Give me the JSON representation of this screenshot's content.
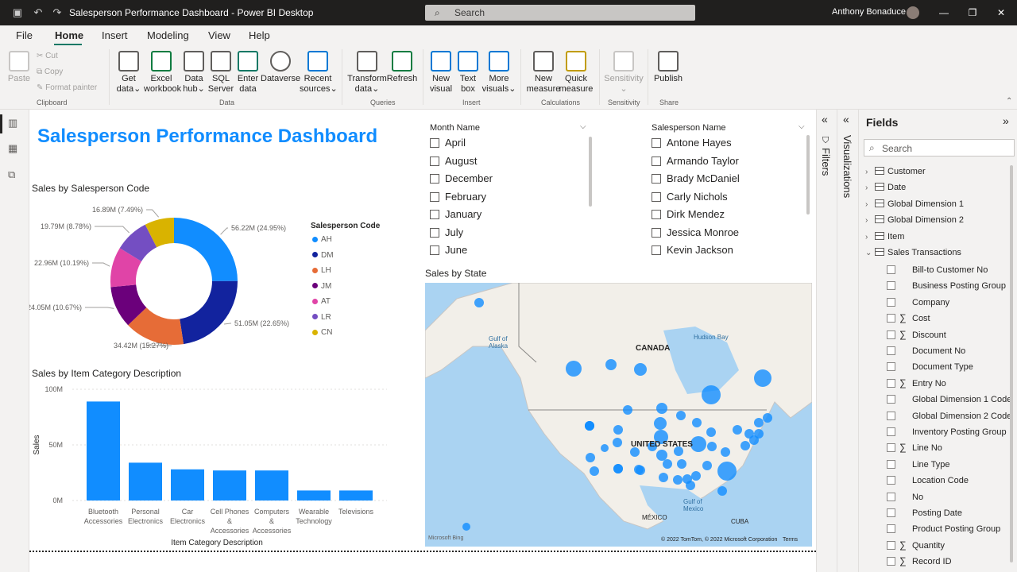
{
  "window": {
    "title": "Salesperson Performance Dashboard - Power BI Desktop",
    "search_placeholder": "Search",
    "user": "Anthony Bonaduce"
  },
  "menu": {
    "tabs": [
      "File",
      "Home",
      "Insert",
      "Modeling",
      "View",
      "Help"
    ],
    "active": "Home"
  },
  "ribbon": {
    "clipboard": {
      "paste": "Paste",
      "cut": "Cut",
      "copy": "Copy",
      "format_painter": "Format painter",
      "group": "Clipboard"
    },
    "data": {
      "get_data": [
        "Get",
        "data"
      ],
      "excel": [
        "Excel",
        "workbook"
      ],
      "data_hub": [
        "Data",
        "hub"
      ],
      "sql": [
        "SQL",
        "Server"
      ],
      "enter": [
        "Enter",
        "data"
      ],
      "dataverse": "Dataverse",
      "recent": [
        "Recent",
        "sources"
      ],
      "group": "Data"
    },
    "queries": {
      "transform": [
        "Transform",
        "data"
      ],
      "refresh": "Refresh",
      "group": "Queries"
    },
    "insert": {
      "new_visual": [
        "New",
        "visual"
      ],
      "text_box": [
        "Text",
        "box"
      ],
      "more": [
        "More",
        "visuals"
      ],
      "group": "Insert"
    },
    "calculations": {
      "new_measure": [
        "New",
        "measure"
      ],
      "quick_measure": [
        "Quick",
        "measure"
      ],
      "group": "Calculations"
    },
    "sensitivity": {
      "label": "Sensitivity",
      "group": "Sensitivity"
    },
    "share": {
      "publish": "Publish",
      "group": "Share"
    }
  },
  "dashboard": {
    "title": "Salesperson Performance Dashboard",
    "donut": {
      "title": "Sales by Salesperson Code",
      "legend_title": "Salesperson Code"
    },
    "bar": {
      "title": "Sales by Item Category Description"
    },
    "month_slicer": {
      "header": "Month Name",
      "items": [
        "April",
        "August",
        "December",
        "February",
        "January",
        "July",
        "June"
      ]
    },
    "person_slicer": {
      "header": "Salesperson Name",
      "items": [
        "Antone Hayes",
        "Armando Taylor",
        "Brady McDaniel",
        "Carly Nichols",
        "Dirk Mendez",
        "Jessica Monroe",
        "Kevin Jackson"
      ]
    },
    "map": {
      "title": "Sales by State",
      "labels": {
        "canada": "CANADA",
        "us": "UNITED STATES",
        "mexico": "MÉXICO",
        "cuba": "CUBA",
        "hudson": "Hudson Bay",
        "alaska": "Gulf of Alaska",
        "gulf": "Gulf of Mexico",
        "attribution": "© 2022 TomTom, © 2022 Microsoft Corporation",
        "terms": "Terms",
        "bing": "Microsoft Bing"
      }
    }
  },
  "chart_data": [
    {
      "type": "pie",
      "title": "Sales by Salesperson Code",
      "legend_title": "Salesperson Code",
      "slices": [
        {
          "name": "AH",
          "value": 56.22,
          "label": "56.22M (24.95%)",
          "color": "#118dff"
        },
        {
          "name": "DM",
          "value": 51.05,
          "label": "51.05M (22.65%)",
          "color": "#12239e"
        },
        {
          "name": "LH",
          "value": 34.42,
          "label": "34.42M (15.27%)",
          "color": "#e66c37"
        },
        {
          "name": "JM",
          "value": 24.05,
          "label": "24.05M (10.67%)",
          "color": "#6b007b"
        },
        {
          "name": "AT",
          "value": 22.96,
          "label": "22.96M (10.19%)",
          "color": "#e044a7"
        },
        {
          "name": "LR",
          "value": 19.79,
          "label": "19.79M (8.78%)",
          "color": "#744ec2"
        },
        {
          "name": "CN",
          "value": 16.89,
          "label": "16.89M (7.49%)",
          "color": "#d9b300"
        }
      ]
    },
    {
      "type": "bar",
      "title": "Sales by Item Category Description",
      "xlabel": "Item Category Description",
      "ylabel": "Sales",
      "categories": [
        [
          "Bluetooth",
          "Accessories"
        ],
        [
          "Personal",
          "Electronics"
        ],
        [
          "Car",
          "Electronics"
        ],
        [
          "Cell Phones",
          "&",
          "Accessories"
        ],
        [
          "Computers",
          "&",
          "Accessories"
        ],
        [
          "Wearable",
          "Technology"
        ],
        [
          "Televisions"
        ]
      ],
      "values": [
        89,
        34,
        28,
        27,
        27,
        9,
        9
      ],
      "ylim": [
        0,
        100
      ],
      "yticks": [
        "0M",
        "50M",
        "100M"
      ],
      "ytick_values": [
        0,
        50,
        100
      ],
      "color": "#118dff"
    }
  ],
  "panes": {
    "filters": "Filters",
    "visualizations": "Visualizations",
    "fields": {
      "title": "Fields",
      "search": "Search",
      "tables": [
        "Customer",
        "Date",
        "Global Dimension 1",
        "Global Dimension 2",
        "Item",
        "Sales Transactions"
      ],
      "columns": [
        {
          "name": "Bill-to Customer No",
          "sum": false
        },
        {
          "name": "Business Posting Group",
          "sum": false
        },
        {
          "name": "Company",
          "sum": false
        },
        {
          "name": "Cost",
          "sum": true
        },
        {
          "name": "Discount",
          "sum": true
        },
        {
          "name": "Document No",
          "sum": false
        },
        {
          "name": "Document Type",
          "sum": false
        },
        {
          "name": "Entry No",
          "sum": true
        },
        {
          "name": "Global Dimension 1 Code",
          "sum": false
        },
        {
          "name": "Global Dimension 2 Code",
          "sum": false
        },
        {
          "name": "Inventory Posting Group",
          "sum": false
        },
        {
          "name": "Line No",
          "sum": true
        },
        {
          "name": "Line Type",
          "sum": false
        },
        {
          "name": "Location Code",
          "sum": false
        },
        {
          "name": "No",
          "sum": false
        },
        {
          "name": "Posting Date",
          "sum": false
        },
        {
          "name": "Product Posting Group",
          "sum": false
        },
        {
          "name": "Quantity",
          "sum": true
        },
        {
          "name": "Record ID",
          "sum": true
        }
      ]
    }
  }
}
